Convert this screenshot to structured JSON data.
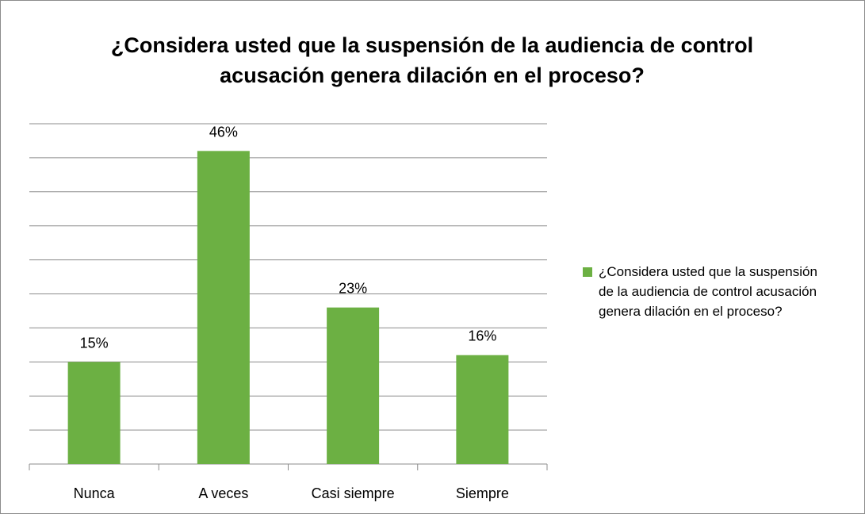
{
  "chart_data": {
    "type": "bar",
    "title": "¿Considera usted que la suspensión de la audiencia de control acusación genera dilación en el proceso?",
    "categories": [
      "Nunca",
      "A veces",
      "Casi siempre",
      "Siempre"
    ],
    "series": [
      {
        "name": "¿Considera usted que la suspensión de la audiencia de control acusación genera dilación en el proceso?",
        "color": "#6cb043",
        "values": [
          15,
          46,
          23,
          16
        ],
        "value_labels": [
          "15%",
          "46%",
          "23%",
          "16%"
        ]
      }
    ],
    "ylim": [
      0,
      50
    ],
    "yticks": [
      0,
      5,
      10,
      15,
      20,
      25,
      30,
      35,
      40,
      45,
      50
    ],
    "grid": true,
    "legend": "right"
  }
}
